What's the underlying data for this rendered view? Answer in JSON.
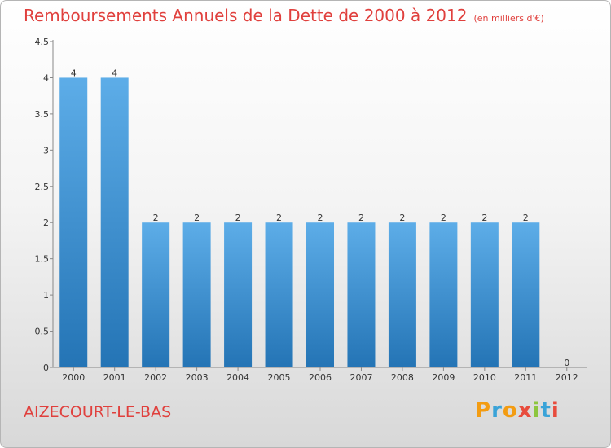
{
  "header": {
    "title": "Remboursements Annuels de la Dette de 2000 à 2012",
    "subtitle": "(en milliers d'€)"
  },
  "footer": {
    "commune": "AIZECOURT-LE-BAS",
    "logo_letters": [
      "P",
      "r",
      "o",
      "x",
      "i",
      "t",
      "i"
    ],
    "logo_colors": [
      "#f39c12",
      "#3aa3d8",
      "#f39c12",
      "#e84c3d",
      "#8dc63f",
      "#3aa3d8",
      "#e84c3d"
    ]
  },
  "chart_data": {
    "type": "bar",
    "categories": [
      "2000",
      "2001",
      "2002",
      "2003",
      "2004",
      "2005",
      "2006",
      "2007",
      "2008",
      "2009",
      "2010",
      "2011",
      "2012"
    ],
    "values": [
      4,
      4,
      2,
      2,
      2,
      2,
      2,
      2,
      2,
      2,
      2,
      2,
      0
    ],
    "data_labels": [
      "4",
      "4",
      "2",
      "2",
      "2",
      "2",
      "2",
      "2",
      "2",
      "2",
      "2",
      "2",
      "0"
    ],
    "yticks": [
      0,
      0.5,
      1,
      1.5,
      2,
      2.5,
      3,
      3.5,
      4,
      4.5
    ],
    "ytick_labels": [
      "0",
      "0.5",
      "1",
      "1.5",
      "2",
      "2.5",
      "3",
      "3.5",
      "4",
      "4.5"
    ],
    "ylim": [
      0,
      4.5
    ],
    "bar_color_top": "#5dade8",
    "bar_color_bottom": "#2474b5",
    "grid": false
  }
}
